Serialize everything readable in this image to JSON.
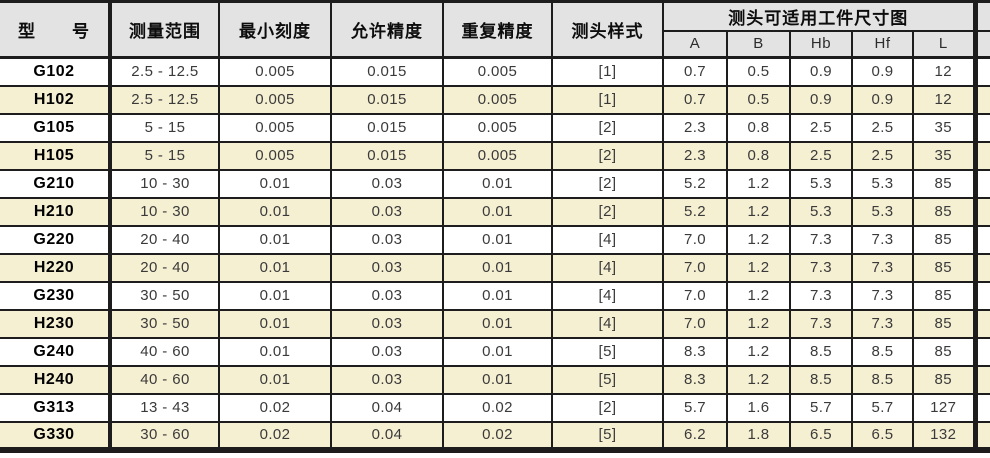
{
  "colors": {
    "header-bg": "#e3e3e3",
    "row-bg": "#ffffff",
    "row-alt-bg": "#f6f0d3",
    "border": "#1d1d1d",
    "text": "#3a3a3a",
    "text-strong": "#000000"
  },
  "table": {
    "headers": {
      "model": "型　　号",
      "range": "测量范围",
      "min_scale": "最小刻度",
      "accuracy": "允许精度",
      "repeatability": "重复精度",
      "probe_style": "测头样式",
      "dims_group": "测头可适用工件尺寸图",
      "dims": [
        "A",
        "B",
        "Hb",
        "Hf",
        "L"
      ]
    },
    "columns": [
      "model",
      "range",
      "min_scale",
      "accuracy",
      "repeatability",
      "probe_style",
      "A",
      "B",
      "Hb",
      "Hf",
      "L"
    ],
    "rows": [
      {
        "model": "G102",
        "range": "2.5 - 12.5",
        "min_scale": "0.005",
        "accuracy": "0.015",
        "repeatability": "0.005",
        "probe_style": "[1]",
        "A": "0.7",
        "B": "0.5",
        "Hb": "0.9",
        "Hf": "0.9",
        "L": "12"
      },
      {
        "model": "H102",
        "range": "2.5 - 12.5",
        "min_scale": "0.005",
        "accuracy": "0.015",
        "repeatability": "0.005",
        "probe_style": "[1]",
        "A": "0.7",
        "B": "0.5",
        "Hb": "0.9",
        "Hf": "0.9",
        "L": "12"
      },
      {
        "model": "G105",
        "range": "5 - 15",
        "min_scale": "0.005",
        "accuracy": "0.015",
        "repeatability": "0.005",
        "probe_style": "[2]",
        "A": "2.3",
        "B": "0.8",
        "Hb": "2.5",
        "Hf": "2.5",
        "L": "35"
      },
      {
        "model": "H105",
        "range": "5 - 15",
        "min_scale": "0.005",
        "accuracy": "0.015",
        "repeatability": "0.005",
        "probe_style": "[2]",
        "A": "2.3",
        "B": "0.8",
        "Hb": "2.5",
        "Hf": "2.5",
        "L": "35"
      },
      {
        "model": "G210",
        "range": "10 - 30",
        "min_scale": "0.01",
        "accuracy": "0.03",
        "repeatability": "0.01",
        "probe_style": "[2]",
        "A": "5.2",
        "B": "1.2",
        "Hb": "5.3",
        "Hf": "5.3",
        "L": "85"
      },
      {
        "model": "H210",
        "range": "10 - 30",
        "min_scale": "0.01",
        "accuracy": "0.03",
        "repeatability": "0.01",
        "probe_style": "[2]",
        "A": "5.2",
        "B": "1.2",
        "Hb": "5.3",
        "Hf": "5.3",
        "L": "85"
      },
      {
        "model": "G220",
        "range": "20 - 40",
        "min_scale": "0.01",
        "accuracy": "0.03",
        "repeatability": "0.01",
        "probe_style": "[4]",
        "A": "7.0",
        "B": "1.2",
        "Hb": "7.3",
        "Hf": "7.3",
        "L": "85"
      },
      {
        "model": "H220",
        "range": "20 - 40",
        "min_scale": "0.01",
        "accuracy": "0.03",
        "repeatability": "0.01",
        "probe_style": "[4]",
        "A": "7.0",
        "B": "1.2",
        "Hb": "7.3",
        "Hf": "7.3",
        "L": "85"
      },
      {
        "model": "G230",
        "range": "30 - 50",
        "min_scale": "0.01",
        "accuracy": "0.03",
        "repeatability": "0.01",
        "probe_style": "[4]",
        "A": "7.0",
        "B": "1.2",
        "Hb": "7.3",
        "Hf": "7.3",
        "L": "85"
      },
      {
        "model": "H230",
        "range": "30 - 50",
        "min_scale": "0.01",
        "accuracy": "0.03",
        "repeatability": "0.01",
        "probe_style": "[4]",
        "A": "7.0",
        "B": "1.2",
        "Hb": "7.3",
        "Hf": "7.3",
        "L": "85"
      },
      {
        "model": "G240",
        "range": "40 - 60",
        "min_scale": "0.01",
        "accuracy": "0.03",
        "repeatability": "0.01",
        "probe_style": "[5]",
        "A": "8.3",
        "B": "1.2",
        "Hb": "8.5",
        "Hf": "8.5",
        "L": "85"
      },
      {
        "model": "H240",
        "range": "40 - 60",
        "min_scale": "0.01",
        "accuracy": "0.03",
        "repeatability": "0.01",
        "probe_style": "[5]",
        "A": "8.3",
        "B": "1.2",
        "Hb": "8.5",
        "Hf": "8.5",
        "L": "85"
      },
      {
        "model": "G313",
        "range": "13 - 43",
        "min_scale": "0.02",
        "accuracy": "0.04",
        "repeatability": "0.02",
        "probe_style": "[2]",
        "A": "5.7",
        "B": "1.6",
        "Hb": "5.7",
        "Hf": "5.7",
        "L": "127"
      },
      {
        "model": "G330",
        "range": "30 - 60",
        "min_scale": "0.02",
        "accuracy": "0.04",
        "repeatability": "0.02",
        "probe_style": "[5]",
        "A": "6.2",
        "B": "1.8",
        "Hb": "6.5",
        "Hf": "6.5",
        "L": "132"
      }
    ]
  }
}
